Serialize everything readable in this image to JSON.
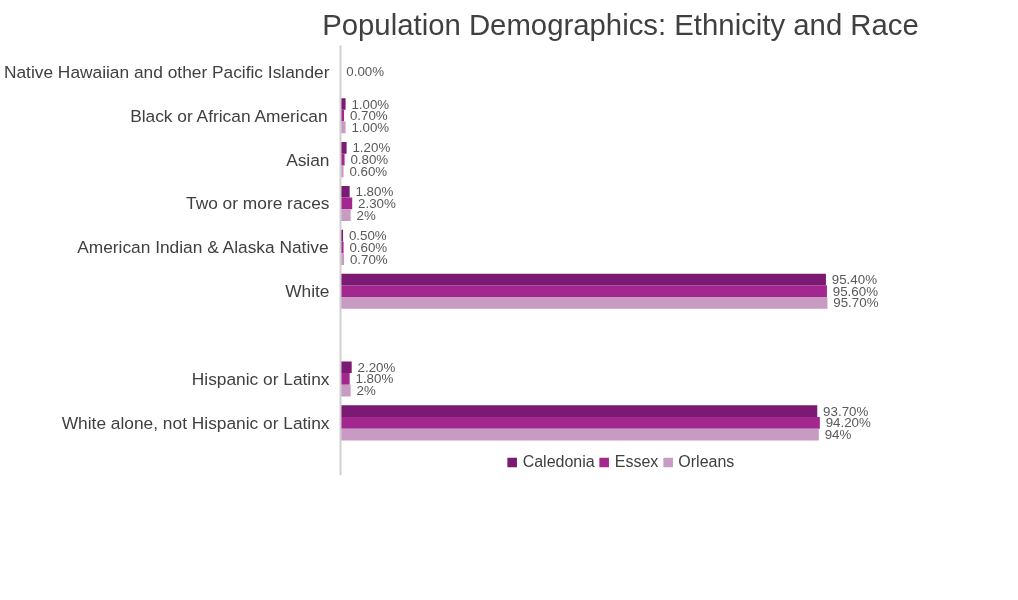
{
  "chart_data": {
    "type": "bar",
    "orientation": "horizontal",
    "title": "Population Demographics: Ethnicity and Race",
    "categories": [
      "Native Hawaiian and other Pacific Islander",
      "Black or African American",
      "Asian",
      "Two or more races",
      "American Indian & Alaska Native",
      "White",
      null,
      "Hispanic or Latinx",
      "White alone, not Hispanic or Latinx"
    ],
    "series": [
      {
        "name": "Caledonia",
        "color": "#7b1a72",
        "values": [
          null,
          1.0,
          1.2,
          1.8,
          0.5,
          95.4,
          null,
          2.2,
          93.7
        ],
        "value_labels": [
          null,
          "1.00%",
          "1.20%",
          "1.80%",
          "0.50%",
          "95.40%",
          null,
          "2.20%",
          "93.70%"
        ]
      },
      {
        "name": "Essex",
        "color": "#a2288f",
        "values": [
          0,
          0.7,
          0.8,
          2.3,
          0.6,
          95.6,
          null,
          1.8,
          94.2
        ],
        "value_labels": [
          "0.00%",
          "0.70%",
          "0.80%",
          "2.30%",
          "0.60%",
          "95.60%",
          null,
          "1.80%",
          "94.20%"
        ]
      },
      {
        "name": "Orleans",
        "color": "#c89bc2",
        "values": [
          null,
          1.0,
          0.6,
          2.0,
          0.7,
          95.7,
          null,
          2.0,
          94.0
        ],
        "value_labels": [
          null,
          "1.00%",
          "0.60%",
          "2%",
          "0.70%",
          "95.70%",
          null,
          "2%",
          "94%"
        ]
      }
    ],
    "grid": false,
    "legend": "bottom",
    "tick_labels": "y"
  }
}
